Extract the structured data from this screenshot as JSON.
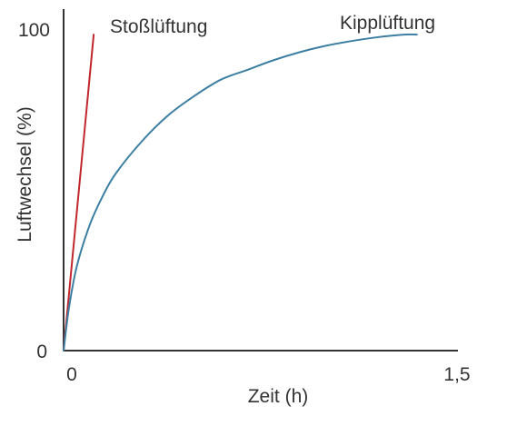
{
  "chart_data": {
    "type": "line",
    "title": "",
    "xlabel": "Zeit (h)",
    "ylabel": "Luftwechsel (%)",
    "xlim": [
      0,
      1.5
    ],
    "ylim": [
      0,
      100
    ],
    "x_ticks": [
      "0",
      "1,5"
    ],
    "y_ticks": [
      "0",
      "100"
    ],
    "grid": false,
    "series": [
      {
        "name": "Stoßlüftung",
        "color": "#c1272d",
        "x": [
          0,
          0.115
        ],
        "y": [
          0,
          98
        ]
      },
      {
        "name": "Kipplüftung",
        "color": "#3d7fa3",
        "x": [
          0,
          0.02,
          0.05,
          0.1,
          0.15,
          0.2,
          0.3,
          0.4,
          0.5,
          0.6,
          0.7,
          0.8,
          0.9,
          1.0,
          1.1,
          1.2,
          1.3,
          1.35
        ],
        "y": [
          0,
          13,
          26,
          39,
          48,
          55,
          65,
          73,
          79,
          84,
          87,
          90,
          92.5,
          94.5,
          96,
          97.2,
          98,
          98
        ]
      }
    ]
  }
}
